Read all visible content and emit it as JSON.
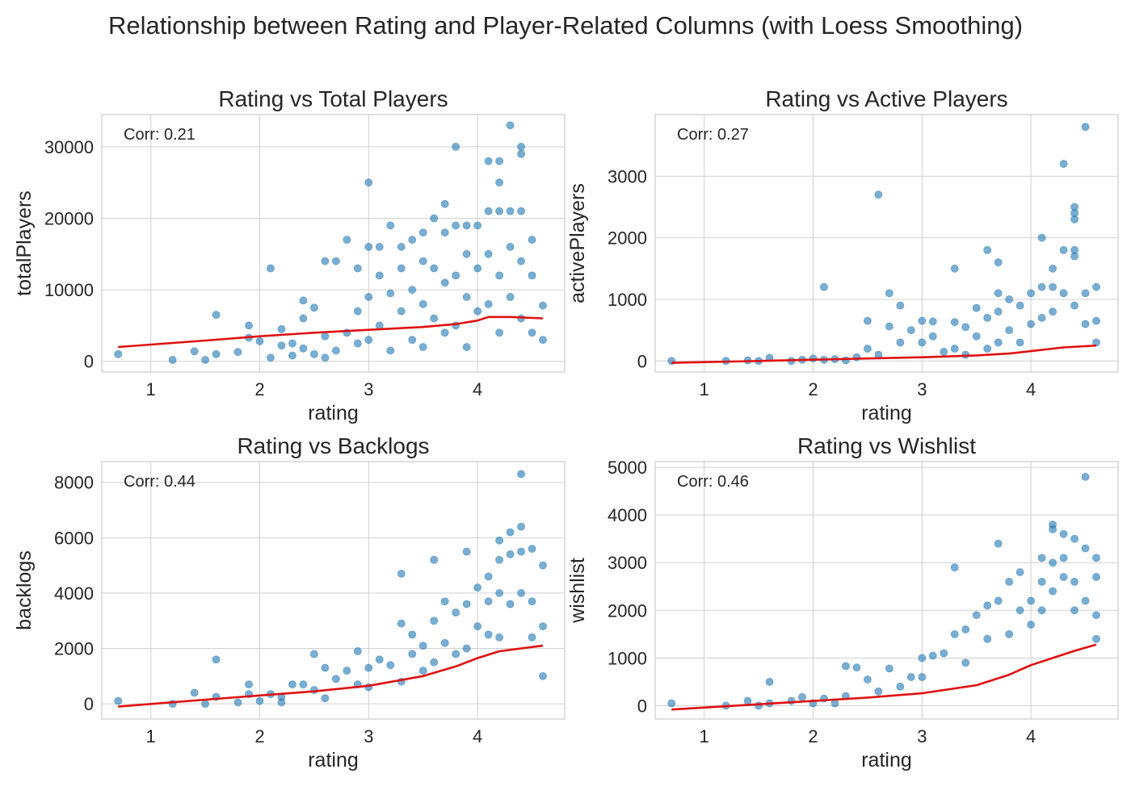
{
  "figure": {
    "title": "Relationship between Rating and Player-Related Columns (with Loess Smoothing)"
  },
  "colors": {
    "points": "#1f77b4",
    "loess": "#e01010",
    "grid": "#d0d0d0",
    "spine": "#cccccc",
    "text": "#262626"
  },
  "chart_data": [
    {
      "type": "scatter",
      "title": "Rating vs Total Players",
      "xlabel": "rating",
      "ylabel": "totalPlayers",
      "annotation": "Corr: 0.21",
      "xlim": [
        0.55,
        4.8
      ],
      "ylim": [
        -1500,
        34500
      ],
      "xticks": [
        1,
        2,
        3,
        4
      ],
      "yticks": [
        0,
        10000,
        20000,
        30000
      ],
      "grid": true,
      "points": [
        [
          0.7,
          1000
        ],
        [
          1.2,
          200
        ],
        [
          1.4,
          1400
        ],
        [
          1.5,
          200
        ],
        [
          1.6,
          1000
        ],
        [
          1.6,
          6500
        ],
        [
          1.8,
          1300
        ],
        [
          1.9,
          3300
        ],
        [
          1.9,
          5000
        ],
        [
          2.0,
          2800
        ],
        [
          2.1,
          500
        ],
        [
          2.1,
          13000
        ],
        [
          2.2,
          2200
        ],
        [
          2.2,
          4500
        ],
        [
          2.3,
          800
        ],
        [
          2.3,
          2500
        ],
        [
          2.4,
          1800
        ],
        [
          2.4,
          6000
        ],
        [
          2.4,
          8500
        ],
        [
          2.5,
          1000
        ],
        [
          2.5,
          7500
        ],
        [
          2.6,
          14000
        ],
        [
          2.6,
          500
        ],
        [
          2.6,
          3500
        ],
        [
          2.7,
          14000
        ],
        [
          2.7,
          1500
        ],
        [
          2.8,
          17000
        ],
        [
          2.8,
          4000
        ],
        [
          2.9,
          13000
        ],
        [
          2.9,
          7000
        ],
        [
          2.9,
          2500
        ],
        [
          3.0,
          25000
        ],
        [
          3.0,
          16000
        ],
        [
          3.0,
          9000
        ],
        [
          3.0,
          3000
        ],
        [
          3.1,
          16000
        ],
        [
          3.1,
          12000
        ],
        [
          3.1,
          5000
        ],
        [
          3.2,
          19000
        ],
        [
          3.2,
          9500
        ],
        [
          3.2,
          1500
        ],
        [
          3.3,
          16000
        ],
        [
          3.3,
          13000
        ],
        [
          3.3,
          7000
        ],
        [
          3.4,
          17000
        ],
        [
          3.4,
          10000
        ],
        [
          3.4,
          3000
        ],
        [
          3.5,
          18000
        ],
        [
          3.5,
          14000
        ],
        [
          3.5,
          8000
        ],
        [
          3.5,
          2000
        ],
        [
          3.6,
          20000
        ],
        [
          3.6,
          13000
        ],
        [
          3.6,
          6000
        ],
        [
          3.7,
          22000
        ],
        [
          3.7,
          18000
        ],
        [
          3.7,
          11000
        ],
        [
          3.7,
          4000
        ],
        [
          3.8,
          30000
        ],
        [
          3.8,
          19000
        ],
        [
          3.8,
          12000
        ],
        [
          3.8,
          5000
        ],
        [
          3.9,
          19000
        ],
        [
          3.9,
          15000
        ],
        [
          3.9,
          9000
        ],
        [
          3.9,
          2000
        ],
        [
          4.0,
          19000
        ],
        [
          4.0,
          13000
        ],
        [
          4.0,
          7000
        ],
        [
          4.1,
          28000
        ],
        [
          4.1,
          21000
        ],
        [
          4.1,
          15000
        ],
        [
          4.1,
          8000
        ],
        [
          4.2,
          28000
        ],
        [
          4.2,
          25000
        ],
        [
          4.2,
          21000
        ],
        [
          4.2,
          12000
        ],
        [
          4.2,
          4000
        ],
        [
          4.3,
          33000
        ],
        [
          4.3,
          21000
        ],
        [
          4.3,
          16000
        ],
        [
          4.3,
          9000
        ],
        [
          4.4,
          30000
        ],
        [
          4.4,
          29000
        ],
        [
          4.4,
          21000
        ],
        [
          4.4,
          14000
        ],
        [
          4.4,
          6000
        ],
        [
          4.5,
          17000
        ],
        [
          4.5,
          12000
        ],
        [
          4.5,
          4000
        ],
        [
          4.6,
          7800
        ],
        [
          4.6,
          3000
        ]
      ],
      "loess": [
        [
          0.7,
          2000
        ],
        [
          1.5,
          2900
        ],
        [
          2.0,
          3500
        ],
        [
          2.5,
          4000
        ],
        [
          3.0,
          4400
        ],
        [
          3.5,
          4800
        ],
        [
          3.8,
          5200
        ],
        [
          4.0,
          5700
        ],
        [
          4.1,
          6200
        ],
        [
          4.3,
          6200
        ],
        [
          4.6,
          6000
        ]
      ]
    },
    {
      "type": "scatter",
      "title": "Rating vs Active Players",
      "xlabel": "rating",
      "ylabel": "activePlayers",
      "annotation": "Corr: 0.27",
      "xlim": [
        0.55,
        4.8
      ],
      "ylim": [
        -180,
        4000
      ],
      "xticks": [
        1,
        2,
        3,
        4
      ],
      "yticks": [
        0,
        1000,
        2000,
        3000
      ],
      "grid": true,
      "points": [
        [
          0.7,
          0
        ],
        [
          1.2,
          0
        ],
        [
          1.4,
          10
        ],
        [
          1.5,
          0
        ],
        [
          1.6,
          50
        ],
        [
          1.8,
          0
        ],
        [
          1.9,
          20
        ],
        [
          2.0,
          40
        ],
        [
          2.1,
          1200
        ],
        [
          2.1,
          20
        ],
        [
          2.2,
          30
        ],
        [
          2.3,
          10
        ],
        [
          2.4,
          60
        ],
        [
          2.5,
          650
        ],
        [
          2.5,
          200
        ],
        [
          2.6,
          2700
        ],
        [
          2.6,
          100
        ],
        [
          2.7,
          1100
        ],
        [
          2.7,
          560
        ],
        [
          2.8,
          900
        ],
        [
          2.8,
          300
        ],
        [
          2.9,
          500
        ],
        [
          3.0,
          650
        ],
        [
          3.0,
          300
        ],
        [
          3.1,
          640
        ],
        [
          3.1,
          400
        ],
        [
          3.2,
          150
        ],
        [
          3.3,
          1500
        ],
        [
          3.3,
          630
        ],
        [
          3.3,
          200
        ],
        [
          3.4,
          550
        ],
        [
          3.4,
          100
        ],
        [
          3.5,
          860
        ],
        [
          3.5,
          400
        ],
        [
          3.6,
          1800
        ],
        [
          3.6,
          700
        ],
        [
          3.6,
          200
        ],
        [
          3.7,
          1600
        ],
        [
          3.7,
          1100
        ],
        [
          3.7,
          800
        ],
        [
          3.7,
          300
        ],
        [
          3.8,
          1000
        ],
        [
          3.8,
          500
        ],
        [
          3.9,
          900
        ],
        [
          3.9,
          300
        ],
        [
          4.0,
          1100
        ],
        [
          4.0,
          600
        ],
        [
          4.1,
          2000
        ],
        [
          4.1,
          1200
        ],
        [
          4.1,
          700
        ],
        [
          4.2,
          1500
        ],
        [
          4.2,
          1200
        ],
        [
          4.2,
          800
        ],
        [
          4.3,
          3200
        ],
        [
          4.3,
          1800
        ],
        [
          4.3,
          1100
        ],
        [
          4.4,
          2500
        ],
        [
          4.4,
          2400
        ],
        [
          4.4,
          2300
        ],
        [
          4.4,
          1800
        ],
        [
          4.4,
          1700
        ],
        [
          4.4,
          900
        ],
        [
          4.5,
          3800
        ],
        [
          4.5,
          1100
        ],
        [
          4.5,
          600
        ],
        [
          4.6,
          1200
        ],
        [
          4.6,
          650
        ],
        [
          4.6,
          300
        ]
      ],
      "loess": [
        [
          0.7,
          -30
        ],
        [
          1.5,
          0
        ],
        [
          2.0,
          20
        ],
        [
          2.5,
          40
        ],
        [
          3.0,
          60
        ],
        [
          3.5,
          90
        ],
        [
          3.8,
          120
        ],
        [
          4.0,
          160
        ],
        [
          4.3,
          220
        ],
        [
          4.6,
          250
        ]
      ]
    },
    {
      "type": "scatter",
      "title": "Rating vs Backlogs",
      "xlabel": "rating",
      "ylabel": "backlogs",
      "annotation": "Corr: 0.44",
      "xlim": [
        0.55,
        4.8
      ],
      "ylim": [
        -550,
        8750
      ],
      "xticks": [
        1,
        2,
        3,
        4
      ],
      "yticks": [
        0,
        2000,
        4000,
        6000,
        8000
      ],
      "grid": true,
      "points": [
        [
          0.7,
          100
        ],
        [
          1.2,
          0
        ],
        [
          1.4,
          400
        ],
        [
          1.5,
          0
        ],
        [
          1.6,
          1600
        ],
        [
          1.6,
          250
        ],
        [
          1.8,
          50
        ],
        [
          1.9,
          700
        ],
        [
          1.9,
          350
        ],
        [
          2.0,
          100
        ],
        [
          2.1,
          350
        ],
        [
          2.2,
          50
        ],
        [
          2.2,
          250
        ],
        [
          2.3,
          700
        ],
        [
          2.4,
          700
        ],
        [
          2.5,
          1800
        ],
        [
          2.5,
          500
        ],
        [
          2.6,
          1300
        ],
        [
          2.6,
          200
        ],
        [
          2.7,
          900
        ],
        [
          2.8,
          1200
        ],
        [
          2.9,
          1900
        ],
        [
          2.9,
          700
        ],
        [
          3.0,
          1300
        ],
        [
          3.0,
          600
        ],
        [
          3.1,
          1600
        ],
        [
          3.2,
          1400
        ],
        [
          3.3,
          4700
        ],
        [
          3.3,
          2900
        ],
        [
          3.3,
          800
        ],
        [
          3.4,
          2500
        ],
        [
          3.4,
          1800
        ],
        [
          3.5,
          2100
        ],
        [
          3.5,
          1200
        ],
        [
          3.6,
          5200
        ],
        [
          3.6,
          3000
        ],
        [
          3.6,
          1500
        ],
        [
          3.7,
          3700
        ],
        [
          3.7,
          2200
        ],
        [
          3.8,
          3300
        ],
        [
          3.8,
          1800
        ],
        [
          3.9,
          5500
        ],
        [
          3.9,
          3600
        ],
        [
          3.9,
          2000
        ],
        [
          4.0,
          4200
        ],
        [
          4.0,
          2800
        ],
        [
          4.1,
          4600
        ],
        [
          4.1,
          3700
        ],
        [
          4.1,
          2500
        ],
        [
          4.2,
          5900
        ],
        [
          4.2,
          5200
        ],
        [
          4.2,
          4000
        ],
        [
          4.2,
          2400
        ],
        [
          4.3,
          6200
        ],
        [
          4.3,
          5400
        ],
        [
          4.3,
          3600
        ],
        [
          4.4,
          8300
        ],
        [
          4.4,
          6400
        ],
        [
          4.4,
          5500
        ],
        [
          4.4,
          4000
        ],
        [
          4.5,
          5600
        ],
        [
          4.5,
          3700
        ],
        [
          4.5,
          2400
        ],
        [
          4.6,
          5000
        ],
        [
          4.6,
          2800
        ],
        [
          4.6,
          1000
        ]
      ],
      "loess": [
        [
          0.7,
          -100
        ],
        [
          1.5,
          150
        ],
        [
          2.0,
          300
        ],
        [
          2.5,
          450
        ],
        [
          3.0,
          650
        ],
        [
          3.5,
          1000
        ],
        [
          3.8,
          1350
        ],
        [
          4.0,
          1650
        ],
        [
          4.2,
          1900
        ],
        [
          4.4,
          2000
        ],
        [
          4.6,
          2100
        ]
      ]
    },
    {
      "type": "scatter",
      "title": "Rating vs Wishlist",
      "xlabel": "rating",
      "ylabel": "wishlist",
      "annotation": "Corr: 0.46",
      "xlim": [
        0.55,
        4.8
      ],
      "ylim": [
        -280,
        5120
      ],
      "xticks": [
        1,
        2,
        3,
        4
      ],
      "yticks": [
        0,
        1000,
        2000,
        3000,
        4000,
        5000
      ],
      "grid": true,
      "points": [
        [
          0.7,
          50
        ],
        [
          1.2,
          0
        ],
        [
          1.4,
          100
        ],
        [
          1.5,
          0
        ],
        [
          1.6,
          500
        ],
        [
          1.6,
          50
        ],
        [
          1.8,
          100
        ],
        [
          1.9,
          180
        ],
        [
          2.0,
          50
        ],
        [
          2.1,
          150
        ],
        [
          2.2,
          50
        ],
        [
          2.3,
          830
        ],
        [
          2.3,
          200
        ],
        [
          2.4,
          800
        ],
        [
          2.5,
          550
        ],
        [
          2.6,
          300
        ],
        [
          2.7,
          780
        ],
        [
          2.8,
          400
        ],
        [
          2.9,
          600
        ],
        [
          3.0,
          1000
        ],
        [
          3.0,
          600
        ],
        [
          3.1,
          1050
        ],
        [
          3.2,
          1100
        ],
        [
          3.3,
          2900
        ],
        [
          3.3,
          1500
        ],
        [
          3.4,
          1600
        ],
        [
          3.4,
          900
        ],
        [
          3.5,
          1900
        ],
        [
          3.6,
          2100
        ],
        [
          3.6,
          1400
        ],
        [
          3.7,
          3400
        ],
        [
          3.7,
          2200
        ],
        [
          3.8,
          2600
        ],
        [
          3.8,
          1500
        ],
        [
          3.9,
          2800
        ],
        [
          3.9,
          2000
        ],
        [
          4.0,
          2200
        ],
        [
          4.0,
          1700
        ],
        [
          4.1,
          3100
        ],
        [
          4.1,
          2600
        ],
        [
          4.1,
          2000
        ],
        [
          4.2,
          3800
        ],
        [
          4.2,
          3700
        ],
        [
          4.2,
          3000
        ],
        [
          4.2,
          2400
        ],
        [
          4.3,
          3600
        ],
        [
          4.3,
          3100
        ],
        [
          4.3,
          2700
        ],
        [
          4.4,
          3500
        ],
        [
          4.4,
          2600
        ],
        [
          4.4,
          2000
        ],
        [
          4.5,
          4800
        ],
        [
          4.5,
          3300
        ],
        [
          4.5,
          2200
        ],
        [
          4.6,
          3100
        ],
        [
          4.6,
          2700
        ],
        [
          4.6,
          1900
        ],
        [
          4.6,
          1400
        ]
      ],
      "loess": [
        [
          0.7,
          -80
        ],
        [
          1.5,
          30
        ],
        [
          2.0,
          100
        ],
        [
          2.5,
          170
        ],
        [
          3.0,
          260
        ],
        [
          3.5,
          430
        ],
        [
          3.8,
          650
        ],
        [
          4.0,
          850
        ],
        [
          4.2,
          1000
        ],
        [
          4.4,
          1150
        ],
        [
          4.6,
          1280
        ]
      ]
    }
  ]
}
